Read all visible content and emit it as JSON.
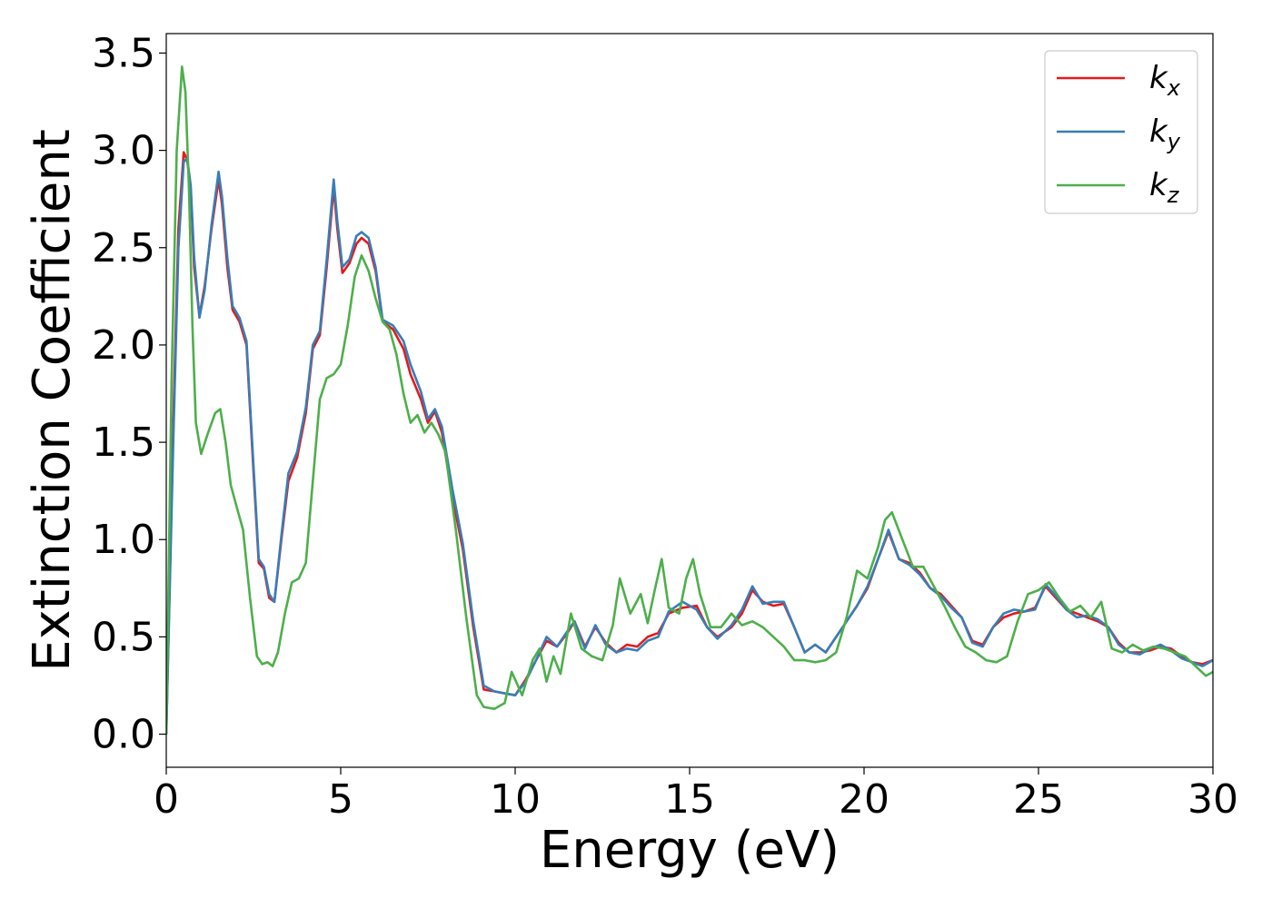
{
  "chart_data": {
    "type": "line",
    "title": "",
    "xlabel": "Energy (eV)",
    "ylabel": "Extinction Coefficient",
    "xlim": [
      0,
      30
    ],
    "ylim": [
      -0.17,
      3.6
    ],
    "xticks": [
      0,
      5,
      10,
      15,
      20,
      25,
      30
    ],
    "xtick_labels": [
      "0",
      "5",
      "10",
      "15",
      "20",
      "25",
      "30"
    ],
    "yticks": [
      0.0,
      0.5,
      1.0,
      1.5,
      2.0,
      2.5,
      3.0,
      3.5
    ],
    "ytick_labels": [
      "0.0",
      "0.5",
      "1.0",
      "1.5",
      "2.0",
      "2.5",
      "3.0",
      "3.5"
    ],
    "grid": false,
    "legend_position": "top-right",
    "series": [
      {
        "name": "k_x",
        "label_base": "k",
        "label_sub": "x",
        "color": "#e41a1c",
        "x": [
          0,
          0.2,
          0.35,
          0.5,
          0.6,
          0.7,
          0.8,
          0.95,
          1.1,
          1.3,
          1.5,
          1.6,
          1.75,
          1.9,
          2.1,
          2.3,
          2.5,
          2.65,
          2.8,
          2.95,
          3.1,
          3.3,
          3.5,
          3.75,
          4.0,
          4.2,
          4.4,
          4.6,
          4.8,
          4.9,
          5.05,
          5.25,
          5.45,
          5.6,
          5.8,
          6.0,
          6.2,
          6.5,
          6.8,
          7.0,
          7.3,
          7.5,
          7.7,
          7.9,
          8.2,
          8.5,
          8.8,
          9.1,
          9.4,
          9.7,
          10.0,
          10.3,
          10.6,
          10.9,
          11.2,
          11.5,
          11.7,
          12.0,
          12.3,
          12.6,
          12.9,
          13.2,
          13.5,
          13.8,
          14.1,
          14.4,
          14.8,
          15.2,
          15.5,
          15.8,
          16.2,
          16.5,
          16.8,
          17.1,
          17.4,
          17.7,
          18.0,
          18.3,
          18.6,
          18.9,
          19.2,
          19.5,
          19.8,
          20.1,
          20.4,
          20.7,
          21.0,
          21.3,
          21.6,
          21.9,
          22.2,
          22.5,
          22.8,
          23.1,
          23.4,
          23.7,
          24.0,
          24.3,
          24.6,
          24.9,
          25.2,
          25.5,
          25.8,
          26.1,
          26.4,
          26.7,
          27.0,
          27.3,
          27.6,
          27.9,
          28.2,
          28.5,
          28.8,
          29.1,
          29.4,
          29.7,
          30.0
        ],
        "y": [
          0.0,
          1.6,
          2.6,
          2.99,
          2.95,
          2.8,
          2.4,
          2.15,
          2.3,
          2.6,
          2.85,
          2.72,
          2.4,
          2.18,
          2.12,
          2.0,
          1.35,
          0.88,
          0.85,
          0.7,
          0.68,
          1.0,
          1.3,
          1.42,
          1.65,
          1.98,
          2.05,
          2.4,
          2.81,
          2.6,
          2.37,
          2.42,
          2.52,
          2.55,
          2.52,
          2.38,
          2.12,
          2.08,
          1.98,
          1.85,
          1.72,
          1.6,
          1.66,
          1.55,
          1.22,
          0.95,
          0.55,
          0.23,
          0.22,
          0.21,
          0.2,
          0.28,
          0.38,
          0.48,
          0.45,
          0.52,
          0.58,
          0.45,
          0.55,
          0.47,
          0.42,
          0.46,
          0.45,
          0.5,
          0.52,
          0.62,
          0.65,
          0.66,
          0.55,
          0.5,
          0.55,
          0.62,
          0.74,
          0.68,
          0.66,
          0.67,
          0.55,
          0.42,
          0.46,
          0.42,
          0.5,
          0.58,
          0.66,
          0.75,
          0.9,
          1.04,
          0.9,
          0.88,
          0.83,
          0.75,
          0.72,
          0.66,
          0.6,
          0.48,
          0.46,
          0.55,
          0.6,
          0.62,
          0.63,
          0.65,
          0.76,
          0.7,
          0.64,
          0.62,
          0.6,
          0.58,
          0.55,
          0.47,
          0.42,
          0.42,
          0.43,
          0.45,
          0.44,
          0.4,
          0.37,
          0.36,
          0.38
        ]
      },
      {
        "name": "k_y",
        "label_base": "k",
        "label_sub": "y",
        "color": "#377eb8",
        "x": [
          0,
          0.2,
          0.35,
          0.5,
          0.6,
          0.7,
          0.8,
          0.95,
          1.1,
          1.3,
          1.5,
          1.6,
          1.75,
          1.9,
          2.1,
          2.3,
          2.5,
          2.65,
          2.8,
          2.95,
          3.1,
          3.3,
          3.5,
          3.75,
          4.0,
          4.2,
          4.4,
          4.6,
          4.8,
          4.9,
          5.05,
          5.25,
          5.45,
          5.6,
          5.8,
          6.0,
          6.2,
          6.5,
          6.8,
          7.0,
          7.3,
          7.5,
          7.7,
          7.9,
          8.2,
          8.5,
          8.8,
          9.1,
          9.4,
          9.7,
          10.0,
          10.3,
          10.6,
          10.9,
          11.2,
          11.5,
          11.7,
          12.0,
          12.3,
          12.6,
          12.9,
          13.2,
          13.5,
          13.8,
          14.1,
          14.4,
          14.8,
          15.2,
          15.5,
          15.8,
          16.2,
          16.5,
          16.8,
          17.1,
          17.4,
          17.7,
          18.0,
          18.3,
          18.6,
          18.9,
          19.2,
          19.5,
          19.8,
          20.1,
          20.4,
          20.7,
          21.0,
          21.3,
          21.6,
          21.9,
          22.2,
          22.5,
          22.8,
          23.1,
          23.4,
          23.7,
          24.0,
          24.3,
          24.6,
          24.9,
          25.2,
          25.5,
          25.8,
          26.1,
          26.4,
          26.7,
          27.0,
          27.3,
          27.6,
          27.9,
          28.2,
          28.5,
          28.8,
          29.1,
          29.4,
          29.7,
          30.0
        ],
        "y": [
          0.0,
          1.5,
          2.5,
          2.94,
          2.96,
          2.82,
          2.45,
          2.14,
          2.28,
          2.62,
          2.89,
          2.76,
          2.45,
          2.2,
          2.14,
          2.02,
          1.38,
          0.9,
          0.86,
          0.72,
          0.68,
          1.02,
          1.34,
          1.45,
          1.68,
          2.0,
          2.07,
          2.44,
          2.85,
          2.64,
          2.4,
          2.44,
          2.56,
          2.58,
          2.55,
          2.4,
          2.13,
          2.1,
          2.02,
          1.9,
          1.76,
          1.62,
          1.67,
          1.58,
          1.26,
          0.98,
          0.58,
          0.25,
          0.22,
          0.21,
          0.2,
          0.27,
          0.38,
          0.5,
          0.45,
          0.53,
          0.58,
          0.44,
          0.56,
          0.46,
          0.42,
          0.44,
          0.43,
          0.48,
          0.5,
          0.63,
          0.68,
          0.64,
          0.55,
          0.49,
          0.56,
          0.64,
          0.76,
          0.67,
          0.68,
          0.68,
          0.55,
          0.42,
          0.46,
          0.42,
          0.5,
          0.58,
          0.66,
          0.76,
          0.9,
          1.05,
          0.9,
          0.87,
          0.82,
          0.75,
          0.71,
          0.65,
          0.6,
          0.47,
          0.45,
          0.55,
          0.62,
          0.64,
          0.63,
          0.64,
          0.77,
          0.71,
          0.64,
          0.6,
          0.61,
          0.59,
          0.55,
          0.46,
          0.42,
          0.41,
          0.44,
          0.46,
          0.43,
          0.39,
          0.37,
          0.35,
          0.38
        ]
      },
      {
        "name": "k_z",
        "label_base": "k",
        "label_sub": "z",
        "color": "#4daf4a",
        "x": [
          0,
          0.15,
          0.3,
          0.45,
          0.55,
          0.65,
          0.75,
          0.85,
          1.0,
          1.2,
          1.4,
          1.55,
          1.7,
          1.85,
          2.0,
          2.2,
          2.4,
          2.6,
          2.75,
          2.9,
          3.05,
          3.2,
          3.4,
          3.6,
          3.8,
          4.0,
          4.2,
          4.4,
          4.6,
          4.8,
          5.0,
          5.2,
          5.4,
          5.6,
          5.8,
          6.0,
          6.2,
          6.4,
          6.6,
          6.8,
          7.0,
          7.2,
          7.4,
          7.6,
          7.8,
          8.0,
          8.3,
          8.6,
          8.9,
          9.1,
          9.4,
          9.7,
          9.9,
          10.2,
          10.5,
          10.7,
          10.9,
          11.1,
          11.3,
          11.6,
          11.9,
          12.2,
          12.5,
          12.8,
          13.0,
          13.3,
          13.6,
          13.8,
          14.0,
          14.2,
          14.4,
          14.7,
          14.9,
          15.1,
          15.3,
          15.6,
          15.9,
          16.2,
          16.5,
          16.8,
          17.1,
          17.4,
          17.7,
          18.0,
          18.3,
          18.6,
          18.9,
          19.2,
          19.5,
          19.8,
          20.1,
          20.4,
          20.6,
          20.8,
          21.1,
          21.4,
          21.7,
          22.0,
          22.3,
          22.6,
          22.9,
          23.2,
          23.5,
          23.8,
          24.1,
          24.4,
          24.7,
          25.0,
          25.3,
          25.6,
          25.9,
          26.2,
          26.5,
          26.8,
          27.1,
          27.4,
          27.7,
          28.0,
          28.3,
          28.6,
          28.9,
          29.2,
          29.5,
          29.8,
          30.0
        ],
        "y": [
          0.0,
          1.8,
          3.0,
          3.43,
          3.3,
          2.8,
          2.1,
          1.6,
          1.44,
          1.55,
          1.65,
          1.67,
          1.5,
          1.28,
          1.18,
          1.05,
          0.7,
          0.4,
          0.36,
          0.37,
          0.35,
          0.42,
          0.62,
          0.78,
          0.8,
          0.88,
          1.3,
          1.72,
          1.83,
          1.85,
          1.9,
          2.1,
          2.35,
          2.46,
          2.38,
          2.24,
          2.12,
          2.08,
          1.95,
          1.75,
          1.6,
          1.64,
          1.55,
          1.6,
          1.54,
          1.45,
          1.05,
          0.6,
          0.2,
          0.14,
          0.13,
          0.16,
          0.32,
          0.2,
          0.38,
          0.44,
          0.27,
          0.4,
          0.31,
          0.62,
          0.44,
          0.4,
          0.38,
          0.56,
          0.8,
          0.62,
          0.72,
          0.57,
          0.74,
          0.9,
          0.65,
          0.62,
          0.8,
          0.9,
          0.72,
          0.55,
          0.55,
          0.62,
          0.56,
          0.58,
          0.55,
          0.5,
          0.45,
          0.38,
          0.38,
          0.37,
          0.38,
          0.42,
          0.6,
          0.84,
          0.8,
          0.96,
          1.1,
          1.14,
          1.0,
          0.86,
          0.86,
          0.76,
          0.66,
          0.55,
          0.45,
          0.42,
          0.38,
          0.37,
          0.4,
          0.58,
          0.72,
          0.74,
          0.78,
          0.7,
          0.63,
          0.66,
          0.6,
          0.68,
          0.44,
          0.42,
          0.46,
          0.43,
          0.45,
          0.44,
          0.42,
          0.4,
          0.35,
          0.3,
          0.32
        ]
      }
    ]
  }
}
